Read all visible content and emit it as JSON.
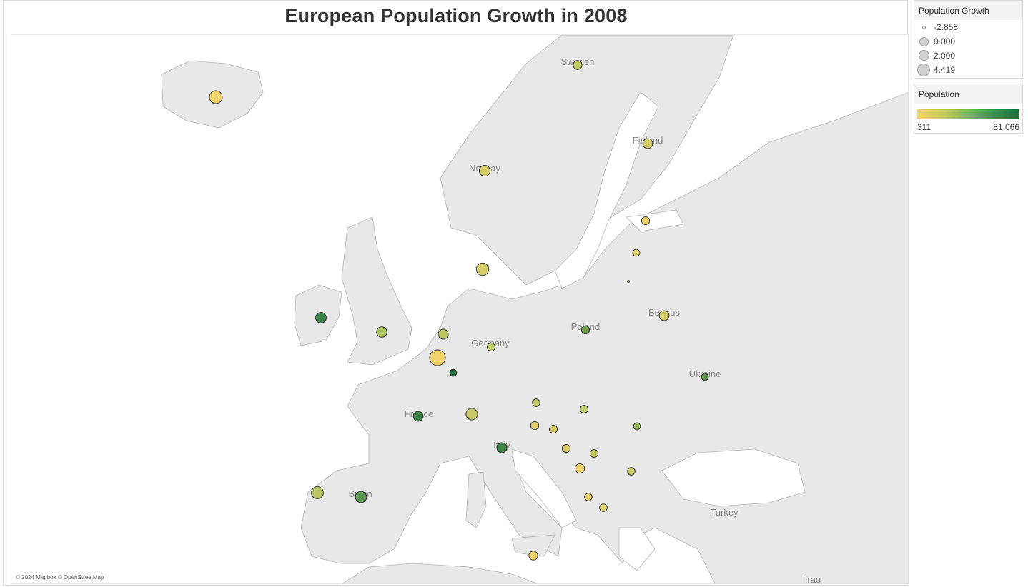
{
  "title": "European Population Growth in 2008",
  "attribution": "© 2024 Mapbox © OpenStreetMap",
  "size_legend": {
    "title": "Population Growth",
    "items": [
      "-2.858",
      "0.000",
      "2.000",
      "4.419"
    ]
  },
  "color_legend": {
    "title": "Population",
    "min_label": "311",
    "max_label": "81,066",
    "colors": [
      "#f0d36b",
      "#1e6b3a"
    ]
  },
  "country_labels": [
    "Sweden",
    "Finland",
    "Norway",
    "Belarus",
    "Poland",
    "Germany",
    "Ukraine",
    "France",
    "Italy",
    "Spain",
    "Turkey",
    "Iraq"
  ],
  "chart_data": {
    "type": "scatter",
    "title": "European Population Growth in 2008",
    "size_field": "Population Growth",
    "color_field": "Population",
    "size_range": [
      -2.858,
      4.419
    ],
    "color_range": [
      311,
      81066
    ],
    "points": [
      {
        "growth": 3.0,
        "population": 315
      },
      {
        "growth": 2.0,
        "population": 4800
      },
      {
        "growth": 1.0,
        "population": 9200
      },
      {
        "growth": 1.5,
        "population": 5300
      },
      {
        "growth": 0.5,
        "population": 1340
      },
      {
        "growth": 0.0,
        "population": 2270
      },
      {
        "growth": -2.858,
        "population": 3370
      },
      {
        "growth": 1.5,
        "population": 5480
      },
      {
        "growth": 2.8,
        "population": 4400
      },
      {
        "growth": 1.9,
        "population": 61200
      },
      {
        "growth": 1.8,
        "population": 16400
      },
      {
        "growth": 1.6,
        "population": 10700
      },
      {
        "growth": 4.419,
        "population": 480
      },
      {
        "growth": 0.0,
        "population": 81066
      },
      {
        "growth": 0.5,
        "population": 9700
      },
      {
        "growth": 0.5,
        "population": 38100
      },
      {
        "growth": 0.0,
        "population": 46200
      },
      {
        "growth": 0.3,
        "population": 8300
      },
      {
        "growth": 0.5,
        "population": 10000
      },
      {
        "growth": 1.5,
        "population": 62000
      },
      {
        "growth": 2.4,
        "population": 7600
      },
      {
        "growth": 0.5,
        "population": 2010
      },
      {
        "growth": 0.5,
        "population": 4440
      },
      {
        "growth": 0.5,
        "population": 3840
      },
      {
        "growth": 0.5,
        "population": 7400
      },
      {
        "growth": 0.0,
        "population": 21500
      },
      {
        "growth": 1.6,
        "population": 59600
      },
      {
        "growth": 0.3,
        "population": 7600
      },
      {
        "growth": 1.3,
        "population": 620
      },
      {
        "growth": 2.6,
        "population": 10600
      },
      {
        "growth": 2.2,
        "population": 45300
      },
      {
        "growth": 0.3,
        "population": 2040
      },
      {
        "growth": 0.3,
        "population": 3140
      },
      {
        "growth": 1.0,
        "population": 410
      }
    ]
  }
}
